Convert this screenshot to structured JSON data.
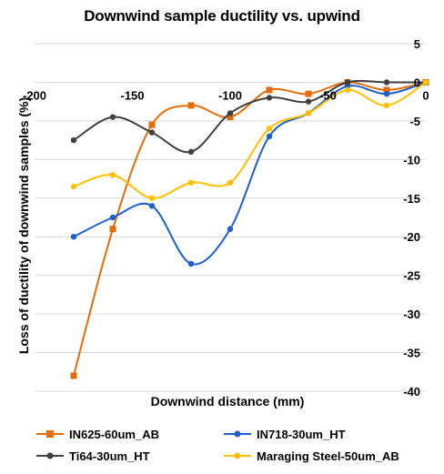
{
  "chart_data": {
    "type": "line",
    "title": "Downwind sample ductility vs. upwind",
    "xlabel": "Downwind distance (mm)",
    "ylabel": "Loss of ductility of downwind samples (%)",
    "xlim": [
      -200,
      0
    ],
    "ylim": [
      -40,
      5
    ],
    "xticks": [
      -200,
      -150,
      -100,
      -50,
      0
    ],
    "yticks": [
      5,
      0,
      -5,
      -10,
      -15,
      -20,
      -25,
      -30,
      -35,
      -40
    ],
    "grid": "horizontal",
    "legend_position": "bottom",
    "series": [
      {
        "name": "IN625-60um_AB",
        "color": "#e46c0a",
        "marker": "square",
        "x": [
          -180,
          -160,
          -140,
          -120,
          -100,
          -80,
          -60,
          -40,
          -20,
          0
        ],
        "y": [
          -38,
          -19,
          -5.5,
          -3,
          -4.5,
          -1,
          -1.5,
          0,
          -1,
          0
        ]
      },
      {
        "name": "IN718-30um_HT",
        "color": "#1f5fc8",
        "marker": "circle",
        "x": [
          -180,
          -160,
          -140,
          -120,
          -100,
          -80,
          -60,
          -40,
          -20,
          0
        ],
        "y": [
          -20,
          -17.5,
          -16,
          -23.5,
          -19,
          -7,
          -4,
          -0.5,
          -1.5,
          0
        ]
      },
      {
        "name": "Ti64-30um_HT",
        "color": "#404040",
        "marker": "circle",
        "x": [
          -180,
          -160,
          -140,
          -120,
          -100,
          -80,
          -60,
          -40,
          -20,
          0
        ],
        "y": [
          -7.5,
          -4.5,
          -6.5,
          -9,
          -4,
          -2,
          -2.5,
          0,
          0,
          0
        ]
      },
      {
        "name": "Maraging Steel-50um_AB",
        "color": "#ffc000",
        "marker": "circle",
        "x": [
          -180,
          -160,
          -140,
          -120,
          -100,
          -80,
          -60,
          -40,
          -20,
          0
        ],
        "y": [
          -13.5,
          -12,
          -15,
          -13,
          -13,
          -6,
          -4,
          -1,
          -3,
          0
        ]
      }
    ]
  }
}
